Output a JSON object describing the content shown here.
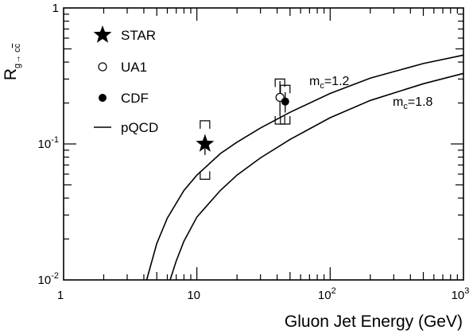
{
  "chart_data": {
    "type": "scatter",
    "title": "",
    "xlabel": "Gluon Jet Energy (GeV)",
    "ylabel": {
      "main": "R",
      "subscript": "g→ c",
      "subscript_bar": "c"
    },
    "xscale": "log",
    "yscale": "log",
    "xlim": [
      1,
      1000
    ],
    "ylim": [
      0.01,
      1
    ],
    "grid": false,
    "legend_position": "top-left",
    "x_ticks": [
      {
        "value": 1,
        "label": "1"
      },
      {
        "value": 10,
        "label": "10"
      },
      {
        "value": 100,
        "base": "10",
        "exp": "2"
      },
      {
        "value": 1000,
        "base": "10",
        "exp": "3"
      }
    ],
    "y_ticks": [
      {
        "value": 0.01,
        "base": "10",
        "exp": "-2"
      },
      {
        "value": 0.1,
        "base": "10",
        "exp": "-1"
      },
      {
        "value": 1,
        "label": "1"
      }
    ],
    "series": [
      {
        "name": "STAR",
        "marker": "star",
        "color": "#000000",
        "points": [
          {
            "x": 11.5,
            "y": 0.1,
            "stat": [
              0.083,
              0.117
            ],
            "sys": [
              0.055,
              0.148
            ]
          }
        ]
      },
      {
        "name": "UA1",
        "marker": "open-circle",
        "color": "#000000",
        "points": [
          {
            "x": 42,
            "y": 0.22,
            "stat": [
              0.16,
              0.29
            ],
            "sys": [
              0.14,
              0.3
            ]
          }
        ]
      },
      {
        "name": "CDF",
        "marker": "filled-circle",
        "color": "#000000",
        "points": [
          {
            "x": 46,
            "y": 0.205,
            "stat": [
              0.17,
              0.24
            ],
            "sys": [
              0.14,
              0.27
            ]
          }
        ]
      },
      {
        "name": "pQCD",
        "marker": "line",
        "color": "#000000",
        "label": "m",
        "label_sub": "c",
        "label_val": "=1.2",
        "points": [
          [
            4.2,
            0.01
          ],
          [
            5,
            0.0185
          ],
          [
            6,
            0.0285
          ],
          [
            8,
            0.0455
          ],
          [
            10,
            0.059
          ],
          [
            15,
            0.085
          ],
          [
            20,
            0.103
          ],
          [
            30,
            0.131
          ],
          [
            50,
            0.171
          ],
          [
            100,
            0.235
          ],
          [
            200,
            0.305
          ],
          [
            500,
            0.39
          ],
          [
            1000,
            0.45
          ]
        ]
      },
      {
        "name": "pQCD",
        "marker": "line",
        "color": "#000000",
        "label": "m",
        "label_sub": "c",
        "label_val": "=1.8",
        "points": [
          [
            6.3,
            0.01
          ],
          [
            7,
            0.0138
          ],
          [
            8,
            0.0193
          ],
          [
            10,
            0.029
          ],
          [
            15,
            0.0455
          ],
          [
            20,
            0.059
          ],
          [
            30,
            0.079
          ],
          [
            50,
            0.108
          ],
          [
            100,
            0.156
          ],
          [
            200,
            0.209
          ],
          [
            500,
            0.277
          ],
          [
            1000,
            0.33
          ]
        ]
      }
    ]
  }
}
